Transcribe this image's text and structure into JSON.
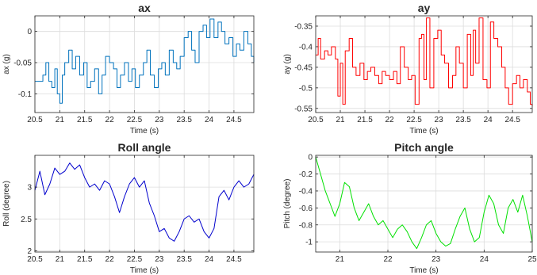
{
  "chart_data": [
    {
      "id": "ax",
      "type": "line",
      "title": "ax",
      "xlabel": "Time (s)",
      "ylabel": "ax (g)",
      "xlim": [
        20.5,
        24.9
      ],
      "ylim": [
        -0.13,
        0.025
      ],
      "xticks": [
        20.5,
        21,
        21.5,
        22,
        22.5,
        23,
        23.5,
        24,
        24.5
      ],
      "xtick_labels": [
        "20.5",
        "21",
        "21.5",
        "22",
        "22.5",
        "23",
        "23.5",
        "24",
        "24.5"
      ],
      "yticks": [
        0,
        -0.05,
        -0.1
      ],
      "ytick_labels": [
        "0",
        "-0.05",
        "-0.1"
      ],
      "grid": true,
      "series": [
        {
          "color": "#0072BD",
          "step": true,
          "x": [
            20.5,
            20.6,
            20.66,
            20.72,
            20.78,
            20.84,
            20.9,
            20.95,
            21.0,
            21.05,
            21.1,
            21.18,
            21.25,
            21.32,
            21.4,
            21.48,
            21.55,
            21.62,
            21.7,
            21.78,
            21.85,
            21.92,
            22.0,
            22.08,
            22.15,
            22.22,
            22.3,
            22.38,
            22.45,
            22.52,
            22.6,
            22.68,
            22.75,
            22.82,
            22.9,
            22.98,
            23.05,
            23.12,
            23.2,
            23.28,
            23.35,
            23.42,
            23.5,
            23.58,
            23.65,
            23.72,
            23.8,
            23.88,
            23.95,
            24.02,
            24.1,
            24.18,
            24.25,
            24.32,
            24.4,
            24.48,
            24.55,
            24.62,
            24.7,
            24.78,
            24.85,
            24.9
          ],
          "y": [
            -0.08,
            -0.08,
            -0.07,
            -0.05,
            -0.08,
            -0.09,
            -0.06,
            -0.1,
            -0.115,
            -0.07,
            -0.05,
            -0.03,
            -0.06,
            -0.04,
            -0.07,
            -0.05,
            -0.09,
            -0.08,
            -0.06,
            -0.1,
            -0.07,
            -0.04,
            -0.05,
            -0.06,
            -0.09,
            -0.07,
            -0.05,
            -0.08,
            -0.06,
            -0.09,
            -0.07,
            -0.05,
            -0.03,
            -0.07,
            -0.09,
            -0.06,
            -0.05,
            -0.07,
            -0.03,
            -0.05,
            -0.06,
            -0.04,
            -0.01,
            0.0,
            -0.03,
            -0.05,
            0.0,
            0.01,
            -0.01,
            0.02,
            -0.01,
            0.015,
            0.0,
            -0.02,
            -0.01,
            -0.04,
            -0.02,
            -0.03,
            0.0,
            -0.02,
            -0.04,
            -0.05
          ]
        }
      ]
    },
    {
      "id": "ay",
      "type": "line",
      "title": "ay",
      "xlabel": "Time (s)",
      "ylabel": "ay (g)",
      "xlim": [
        20.5,
        24.9
      ],
      "ylim": [
        -0.56,
        -0.325
      ],
      "xticks": [
        20.5,
        21,
        21.5,
        22,
        22.5,
        23,
        23.5,
        24,
        24.5
      ],
      "xtick_labels": [
        "20.5",
        "21",
        "21.5",
        "22",
        "22.5",
        "23",
        "23.5",
        "24",
        "24.5"
      ],
      "yticks": [
        -0.35,
        -0.4,
        -0.45,
        -0.5,
        -0.55
      ],
      "ytick_labels": [
        "-0.35",
        "-0.4",
        "-0.45",
        "-0.5",
        "-0.55"
      ],
      "grid": true,
      "series": [
        {
          "color": "#FF0000",
          "step": true,
          "x": [
            20.5,
            20.55,
            20.6,
            20.68,
            20.75,
            20.82,
            20.9,
            20.95,
            21.0,
            21.05,
            21.1,
            21.18,
            21.25,
            21.32,
            21.4,
            21.48,
            21.55,
            21.62,
            21.7,
            21.78,
            21.85,
            21.92,
            22.0,
            22.08,
            22.15,
            22.22,
            22.3,
            22.38,
            22.45,
            22.52,
            22.6,
            22.65,
            22.7,
            22.75,
            22.82,
            22.9,
            22.98,
            23.05,
            23.12,
            23.2,
            23.28,
            23.35,
            23.42,
            23.5,
            23.58,
            23.65,
            23.7,
            23.75,
            23.82,
            23.9,
            23.98,
            24.05,
            24.12,
            24.2,
            24.28,
            24.35,
            24.42,
            24.5,
            24.58,
            24.65,
            24.72,
            24.8,
            24.86,
            24.9
          ],
          "y": [
            -0.42,
            -0.38,
            -0.43,
            -0.41,
            -0.42,
            -0.4,
            -0.43,
            -0.52,
            -0.44,
            -0.54,
            -0.41,
            -0.38,
            -0.45,
            -0.47,
            -0.44,
            -0.48,
            -0.46,
            -0.45,
            -0.47,
            -0.49,
            -0.46,
            -0.47,
            -0.48,
            -0.46,
            -0.49,
            -0.4,
            -0.45,
            -0.48,
            -0.47,
            -0.54,
            -0.38,
            -0.37,
            -0.48,
            -0.33,
            -0.5,
            -0.38,
            -0.36,
            -0.42,
            -0.44,
            -0.5,
            -0.47,
            -0.4,
            -0.44,
            -0.5,
            -0.37,
            -0.47,
            -0.36,
            -0.44,
            -0.33,
            -0.48,
            -0.5,
            -0.34,
            -0.38,
            -0.4,
            -0.45,
            -0.5,
            -0.54,
            -0.49,
            -0.47,
            -0.5,
            -0.48,
            -0.51,
            -0.54,
            -0.545
          ]
        }
      ]
    },
    {
      "id": "roll",
      "type": "line",
      "title": "Roll angle",
      "xlabel": "Time (s)",
      "ylabel": "Roll (degree)",
      "xlim": [
        20.5,
        24.9
      ],
      "ylim": [
        1.98,
        3.5
      ],
      "xticks": [
        20.5,
        21,
        21.5,
        22,
        22.5,
        23,
        23.5,
        24,
        24.5
      ],
      "xtick_labels": [
        "20.5",
        "21",
        "21.5",
        "22",
        "22.5",
        "23",
        "23.5",
        "24",
        "24.5"
      ],
      "yticks": [
        3,
        2.5,
        2
      ],
      "ytick_labels": [
        "3",
        "2.5",
        "2"
      ],
      "grid": true,
      "series": [
        {
          "color": "#0000CD",
          "step": false,
          "x": [
            20.5,
            20.6,
            20.7,
            20.8,
            20.9,
            21.0,
            21.1,
            21.2,
            21.3,
            21.4,
            21.5,
            21.6,
            21.7,
            21.8,
            21.9,
            22.0,
            22.1,
            22.2,
            22.3,
            22.4,
            22.5,
            22.6,
            22.7,
            22.8,
            22.9,
            23.0,
            23.1,
            23.2,
            23.3,
            23.4,
            23.5,
            23.6,
            23.7,
            23.8,
            23.9,
            24.0,
            24.1,
            24.2,
            24.3,
            24.4,
            24.5,
            24.6,
            24.7,
            24.8,
            24.9
          ],
          "y": [
            2.95,
            3.25,
            2.88,
            3.05,
            3.3,
            3.2,
            3.25,
            3.38,
            3.28,
            3.35,
            3.15,
            3.0,
            3.05,
            2.95,
            3.1,
            3.05,
            2.85,
            2.6,
            2.85,
            3.05,
            3.15,
            3.0,
            3.1,
            2.75,
            2.55,
            2.3,
            2.35,
            2.2,
            2.15,
            2.3,
            2.5,
            2.55,
            2.45,
            2.5,
            2.3,
            2.2,
            2.35,
            2.85,
            2.95,
            2.8,
            3.0,
            3.1,
            3.0,
            3.05,
            3.2
          ]
        }
      ]
    },
    {
      "id": "pitch",
      "type": "line",
      "title": "Pitch angle",
      "xlabel": "Time (s)",
      "ylabel": "Pitch (degree)",
      "xlim": [
        20.5,
        25
      ],
      "ylim": [
        -1.12,
        0.02
      ],
      "xticks": [
        21,
        22,
        23,
        24,
        25
      ],
      "xtick_labels": [
        "21",
        "22",
        "23",
        "24",
        "25"
      ],
      "yticks": [
        0,
        -0.2,
        -0.4,
        -0.6,
        -0.8,
        -1
      ],
      "ytick_labels": [
        "0",
        "-0.2",
        "-0.4",
        "-0.6",
        "-0.8",
        "-1"
      ],
      "grid": true,
      "series": [
        {
          "color": "#00E000",
          "step": false,
          "x": [
            20.5,
            20.6,
            20.7,
            20.8,
            20.9,
            21.0,
            21.1,
            21.2,
            21.3,
            21.4,
            21.5,
            21.6,
            21.7,
            21.8,
            21.9,
            22.0,
            22.1,
            22.2,
            22.3,
            22.4,
            22.5,
            22.6,
            22.7,
            22.8,
            22.9,
            23.0,
            23.1,
            23.2,
            23.3,
            23.4,
            23.5,
            23.6,
            23.7,
            23.8,
            23.9,
            24.0,
            24.1,
            24.2,
            24.3,
            24.4,
            24.5,
            24.6,
            24.7,
            24.8,
            24.9,
            25.0
          ],
          "y": [
            0.0,
            -0.2,
            -0.4,
            -0.55,
            -0.7,
            -0.55,
            -0.3,
            -0.35,
            -0.6,
            -0.75,
            -0.65,
            -0.55,
            -0.7,
            -0.8,
            -0.75,
            -0.85,
            -0.95,
            -0.85,
            -0.8,
            -0.88,
            -1.0,
            -1.08,
            -0.95,
            -0.8,
            -0.75,
            -0.9,
            -1.0,
            -1.05,
            -1.02,
            -0.85,
            -0.7,
            -0.6,
            -0.85,
            -1.0,
            -0.95,
            -0.65,
            -0.45,
            -0.55,
            -0.8,
            -0.9,
            -0.6,
            -0.5,
            -0.65,
            -0.45,
            -0.7,
            -1.0
          ]
        }
      ]
    }
  ]
}
